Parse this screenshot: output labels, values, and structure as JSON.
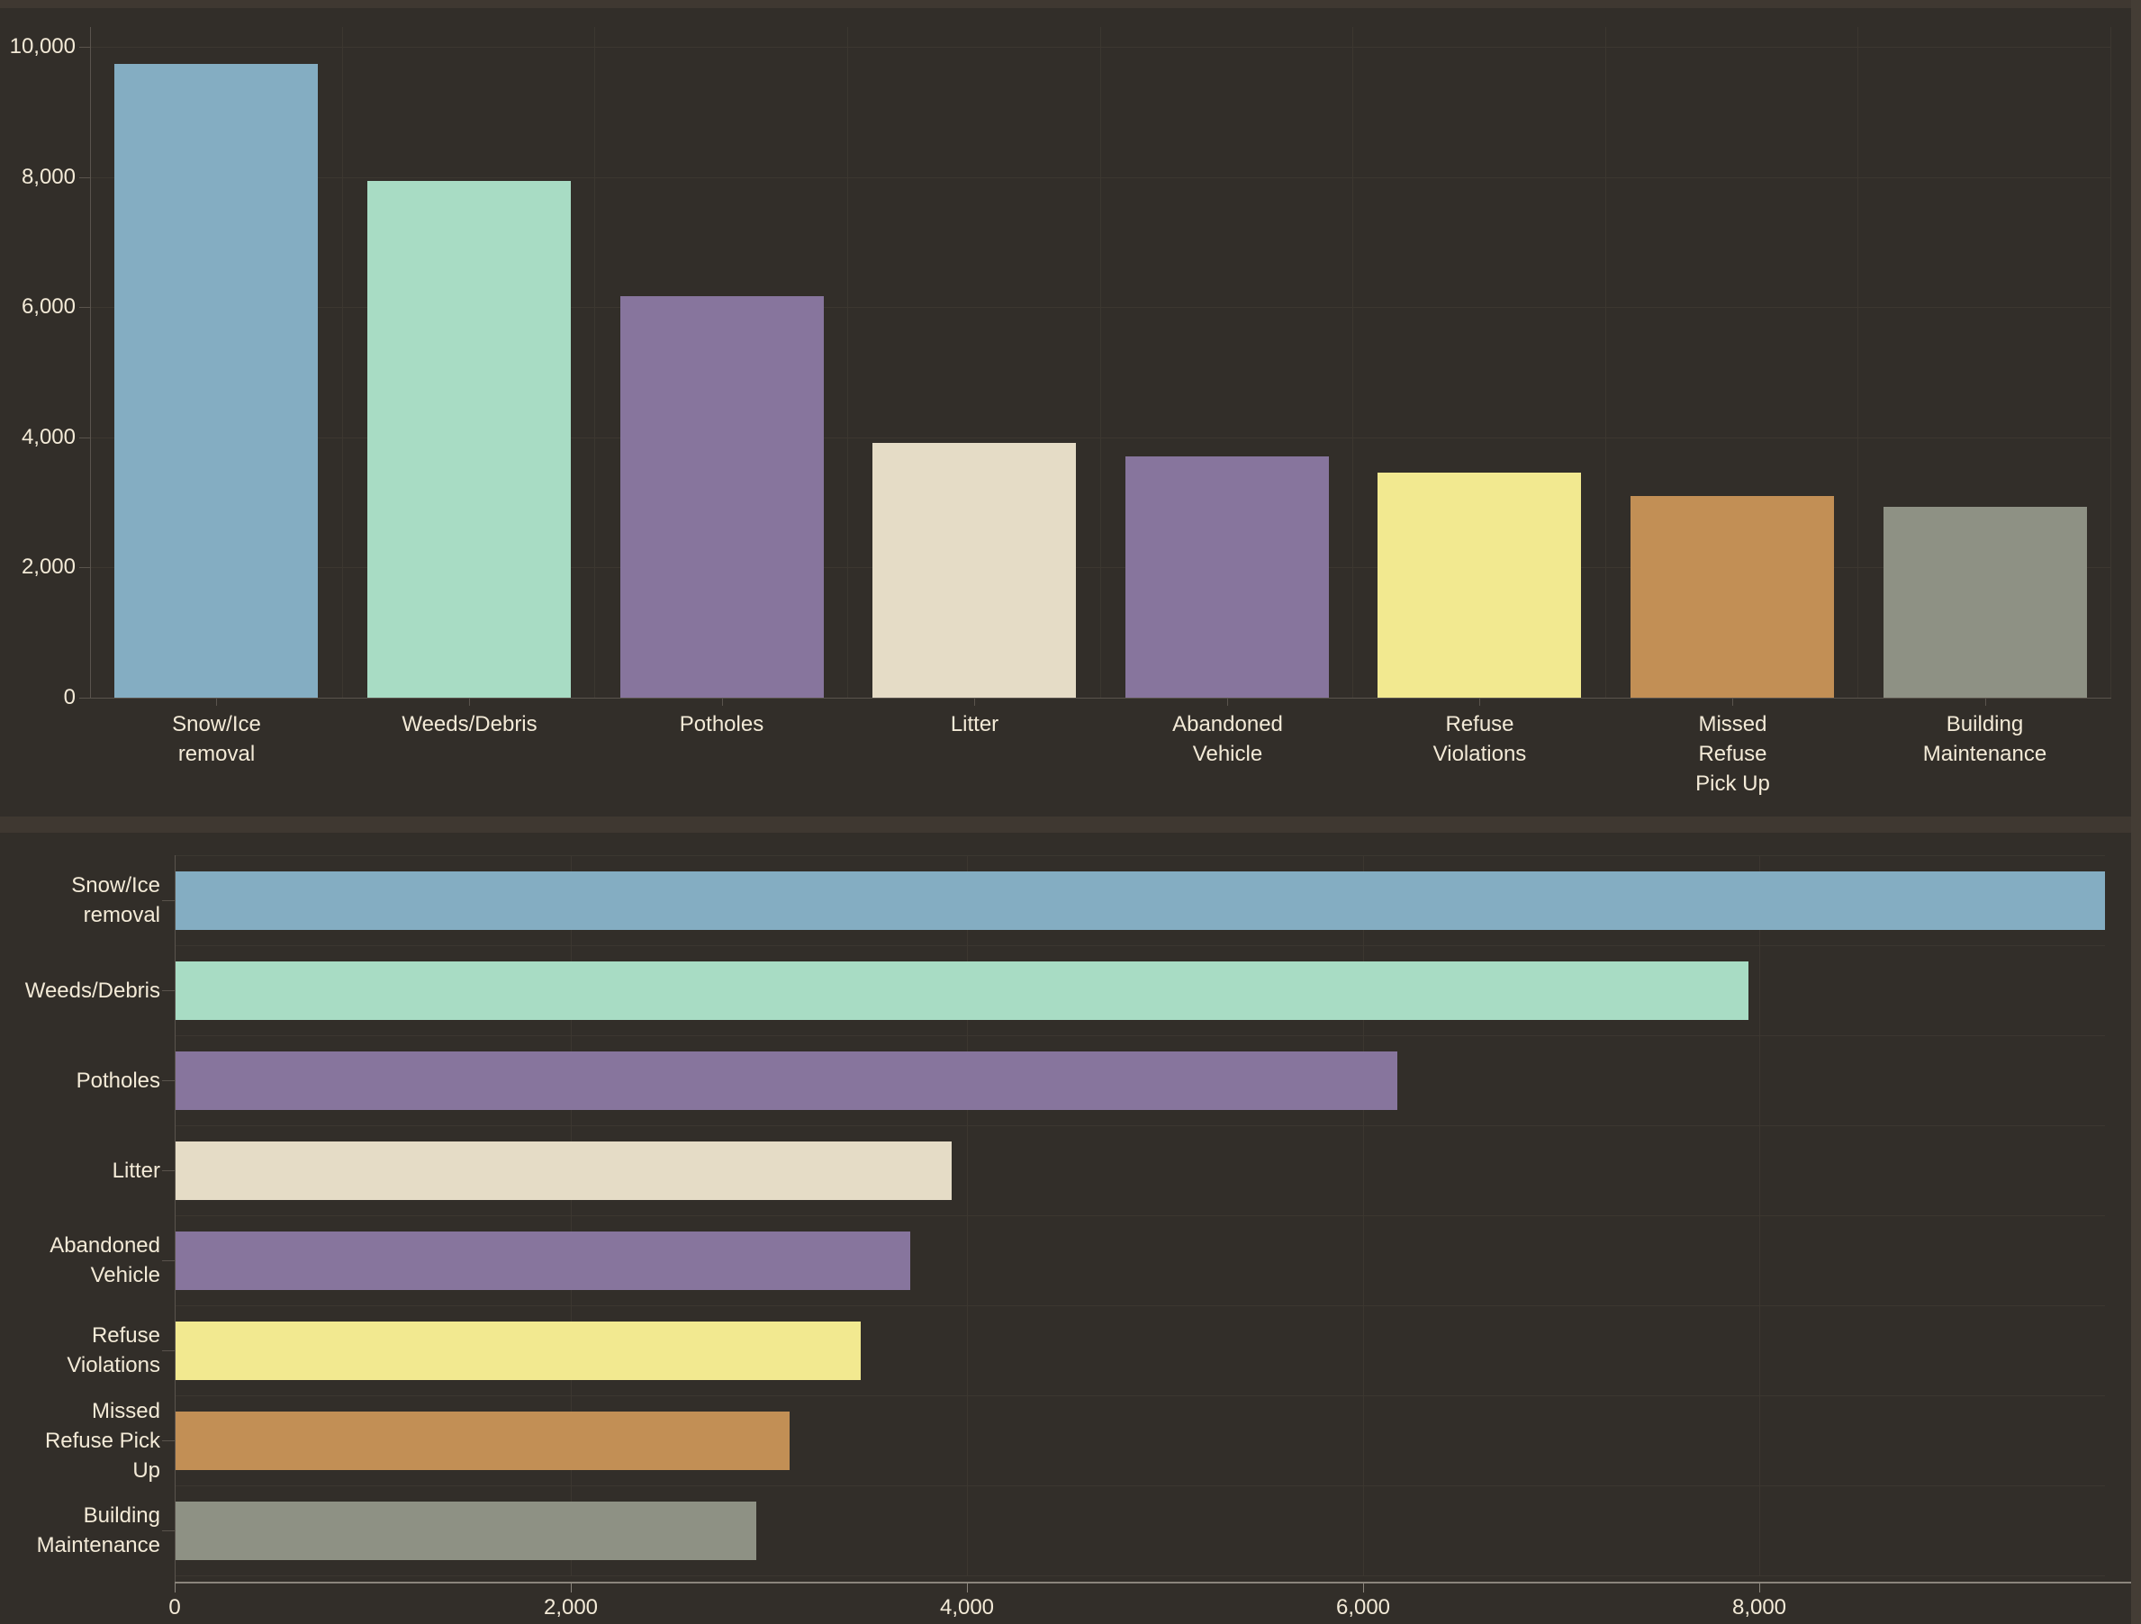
{
  "theme": {
    "background": "#322e29",
    "panel_band": "#3f3831",
    "right_band": "#443d35",
    "grid": "#3c3730",
    "axis": "#5a544d",
    "axis_strong": "#8b857c",
    "text": "#f3ead7"
  },
  "chart_data": [
    {
      "type": "bar",
      "orientation": "vertical",
      "title": "",
      "xlabel": "",
      "ylabel": "",
      "grid": true,
      "legend": false,
      "categories": [
        "Snow/Ice removal",
        "Weeds/Debris",
        "Potholes",
        "Litter",
        "Abandoned Vehicle",
        "Refuse Violations",
        "Missed Refuse Pick Up",
        "Building Maintenance"
      ],
      "category_lines": [
        [
          "Snow/Ice",
          "removal"
        ],
        [
          "Weeds/Debris"
        ],
        [
          "Potholes"
        ],
        [
          "Litter"
        ],
        [
          "Abandoned",
          "Vehicle"
        ],
        [
          "Refuse",
          "Violations"
        ],
        [
          "Missed",
          "Refuse",
          "Pick Up"
        ],
        [
          "Building",
          "Maintenance"
        ]
      ],
      "values": [
        9740,
        7940,
        6170,
        3920,
        3710,
        3460,
        3100,
        2930
      ],
      "colors": [
        "#84adc2",
        "#a8dcc4",
        "#87759d",
        "#e5dcc6",
        "#87759d",
        "#f2e990",
        "#c28f55",
        "#8e9184"
      ],
      "ylim": [
        0,
        10000
      ],
      "yticks": [
        0,
        2000,
        4000,
        6000,
        8000,
        10000
      ],
      "ytick_labels": [
        "0",
        "2,000",
        "4,000",
        "6,000",
        "8,000",
        "10,000"
      ]
    },
    {
      "type": "bar",
      "orientation": "horizontal",
      "title": "",
      "xlabel": "",
      "ylabel": "",
      "grid": true,
      "legend": false,
      "categories": [
        "Snow/Ice removal",
        "Weeds/Debris",
        "Potholes",
        "Litter",
        "Abandoned Vehicle",
        "Refuse Violations",
        "Missed Refuse Pick Up",
        "Building Maintenance"
      ],
      "category_lines": [
        [
          "Snow/Ice",
          "removal"
        ],
        [
          "Weeds/Debris"
        ],
        [
          "Potholes"
        ],
        [
          "Litter"
        ],
        [
          "Abandoned",
          "Vehicle"
        ],
        [
          "Refuse",
          "Violations"
        ],
        [
          "Missed",
          "Refuse Pick",
          "Up"
        ],
        [
          "Building",
          "Maintenance"
        ]
      ],
      "values": [
        9740,
        7940,
        6170,
        3920,
        3710,
        3460,
        3100,
        2930
      ],
      "colors": [
        "#84adc2",
        "#a8dcc4",
        "#87759d",
        "#e5dcc6",
        "#87759d",
        "#f2e990",
        "#c28f55",
        "#8e9184"
      ],
      "xlim": [
        0,
        9745
      ],
      "xticks": [
        0,
        2000,
        4000,
        6000,
        8000
      ],
      "xtick_labels": [
        "0",
        "2,000",
        "4,000",
        "6,000",
        "8,000"
      ]
    }
  ]
}
